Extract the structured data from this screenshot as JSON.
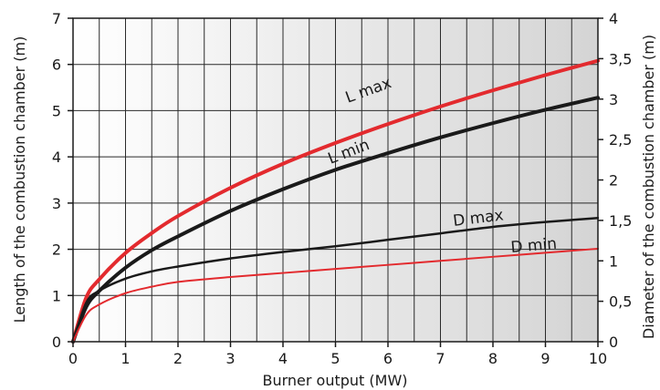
{
  "chart_data": {
    "type": "line",
    "xlabel": "Burner output (MW)",
    "ylabel_left": "Length of the combustion chamber (m)",
    "ylabel_right": "Diameter of the combustion chamber (m)",
    "xlim": [
      0,
      10
    ],
    "ylim_left": [
      0,
      7
    ],
    "ylim_right": [
      0,
      4
    ],
    "x_ticks": [
      "0",
      "1",
      "2",
      "3",
      "4",
      "5",
      "6",
      "7",
      "8",
      "9",
      "10"
    ],
    "y_left_ticks": [
      "0",
      "1",
      "2",
      "3",
      "4",
      "5",
      "6",
      "7"
    ],
    "y_right_ticks": [
      "0",
      "0,5",
      "1",
      "1,5",
      "2",
      "2,5",
      "3",
      "3,5",
      "4"
    ],
    "grid": true,
    "background": "horizontal gradient white to light grey",
    "series": [
      {
        "name": "L max",
        "axis": "left",
        "color": "#e32a2e",
        "x": [
          0,
          0.25,
          0.5,
          1,
          1.5,
          2,
          3,
          4,
          5,
          6,
          7,
          8,
          9,
          10
        ],
        "y": [
          0,
          0.95,
          1.35,
          1.92,
          2.35,
          2.72,
          3.33,
          3.85,
          4.3,
          4.71,
          5.09,
          5.44,
          5.77,
          6.08
        ]
      },
      {
        "name": "L min",
        "axis": "left",
        "color": "#1a1a1a",
        "x": [
          0,
          0.25,
          0.5,
          1,
          1.5,
          2,
          3,
          4,
          5,
          6,
          7,
          8,
          9,
          10
        ],
        "y": [
          0,
          0.75,
          1.1,
          1.6,
          1.98,
          2.28,
          2.83,
          3.3,
          3.72,
          4.08,
          4.42,
          4.73,
          5.02,
          5.28
        ]
      },
      {
        "name": "D max",
        "axis": "right",
        "color": "#1a1a1a",
        "x": [
          0,
          0.25,
          0.5,
          1,
          1.5,
          2,
          3,
          4,
          5,
          6,
          7,
          8,
          9,
          10
        ],
        "y": [
          0,
          0.48,
          0.63,
          0.78,
          0.87,
          0.93,
          1.03,
          1.11,
          1.18,
          1.26,
          1.34,
          1.42,
          1.48,
          1.53
        ]
      },
      {
        "name": "D min",
        "axis": "right",
        "color": "#e32a2e",
        "x": [
          0,
          0.25,
          0.5,
          1,
          1.5,
          2,
          3,
          4,
          5,
          6,
          7,
          8,
          9,
          10
        ],
        "y": [
          0,
          0.33,
          0.46,
          0.6,
          0.68,
          0.74,
          0.8,
          0.85,
          0.9,
          0.95,
          1,
          1.05,
          1.1,
          1.15
        ]
      }
    ]
  }
}
